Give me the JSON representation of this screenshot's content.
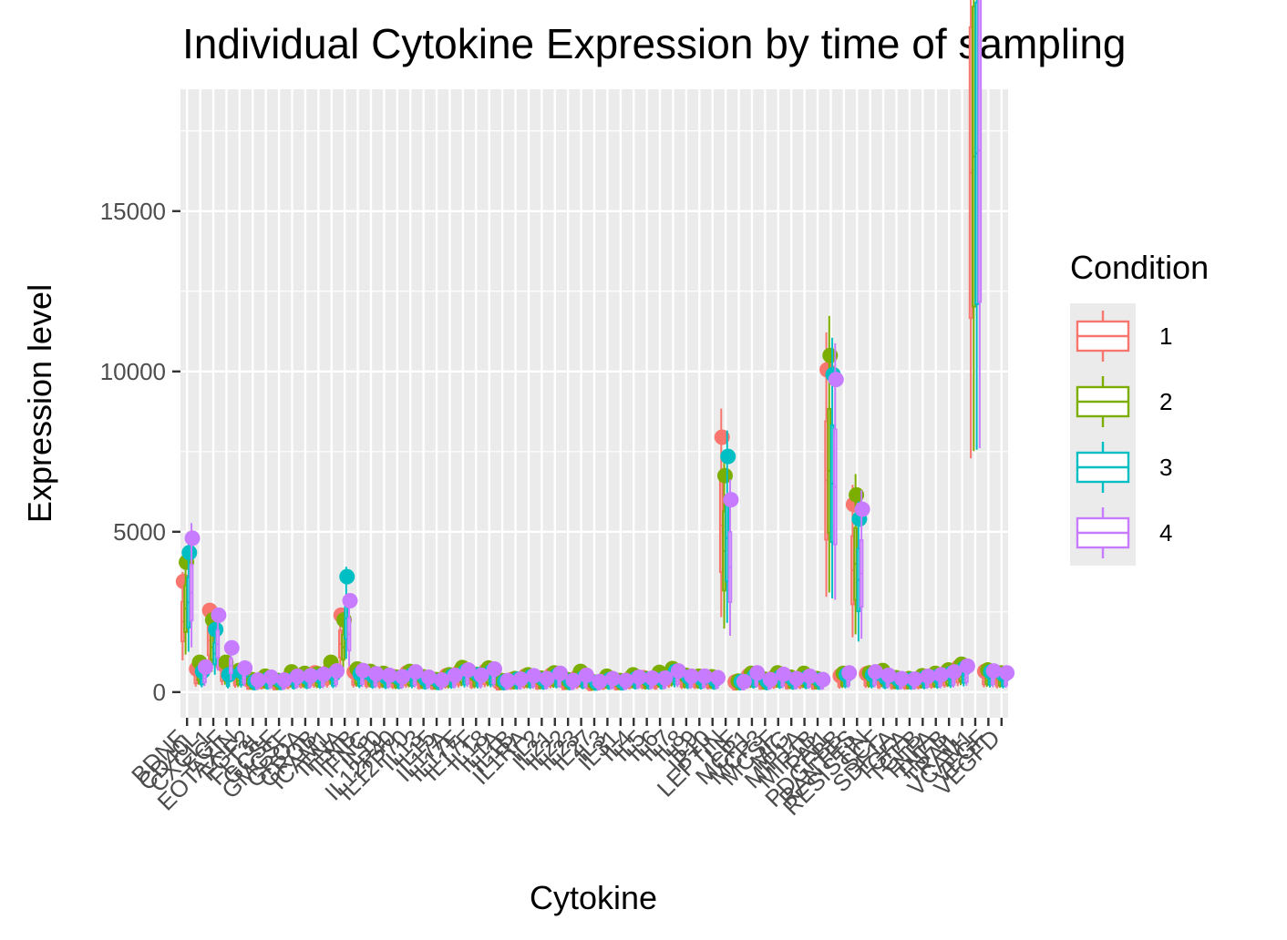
{
  "chart_data": {
    "type": "boxplot",
    "title": "Individual Cytokine Expression by time of sampling",
    "xlabel": "Cytokine",
    "ylabel": "Expression level",
    "ylim": [
      -800,
      18800
    ],
    "yticks": [
      0,
      5000,
      10000,
      15000
    ],
    "grid": true,
    "legend": {
      "title": "Condition",
      "placement": "right",
      "entries": [
        {
          "label": "1",
          "color": "#F8766D"
        },
        {
          "label": "2",
          "color": "#7CAE00"
        },
        {
          "label": "3",
          "color": "#00BFC4"
        },
        {
          "label": "4",
          "color": "#C77CFF"
        }
      ]
    },
    "categories": [
      "BDNF",
      "CD40L",
      "CXCL1",
      "EGF",
      "EOTAXIN",
      "FGF2",
      "FLT3L",
      "GCSF",
      "GMCSF",
      "GROA",
      "GROB",
      "ICAM1",
      "IFNA",
      "IFNB",
      "IFNG",
      "IL10",
      "IL12P40",
      "IL12P70",
      "IL13",
      "IL15",
      "IL17A",
      "IL17E",
      "IL17F",
      "IL18",
      "IL1A",
      "IL1B",
      "IL1RA",
      "IL2",
      "IL21",
      "IL22",
      "IL23",
      "IL27",
      "IL3",
      "IL31",
      "IL4",
      "IL5",
      "IL6",
      "IL7",
      "IL8",
      "IL9",
      "IP10",
      "LEPTIN",
      "LIF",
      "MCP1",
      "MCP3",
      "MCSF",
      "MIG",
      "MIP1A",
      "MIP1B",
      "PAI1",
      "PDGFBB",
      "RANTES",
      "RESISTIN",
      "SCF",
      "SDF1A",
      "TGFA",
      "TGFB",
      "TNFA",
      "TNFB",
      "TRAIL",
      "VCAM1",
      "VEGF",
      "VEGFD"
    ],
    "series": [
      {
        "name": "1",
        "values": [
          2200,
          380,
          1600,
          480,
          300,
          150,
          180,
          120,
          200,
          250,
          300,
          320,
          1500,
          320,
          260,
          240,
          220,
          300,
          180,
          150,
          240,
          320,
          220,
          340,
          110,
          160,
          230,
          150,
          260,
          130,
          220,
          90,
          150,
          120,
          190,
          200,
          160,
          290,
          220,
          210,
          180,
          5200,
          110,
          240,
          150,
          220,
          170,
          210,
          150,
          6600,
          240,
          3800,
          280,
          210,
          170,
          160,
          190,
          230,
          300,
          420,
          16200,
          330,
          260
        ]
      },
      {
        "name": "2",
        "values": [
          2600,
          520,
          1400,
          520,
          350,
          160,
          230,
          140,
          320,
          290,
          280,
          520,
          1400,
          380,
          330,
          290,
          210,
          330,
          220,
          160,
          260,
          410,
          270,
          400,
          140,
          180,
          260,
          190,
          300,
          160,
          330,
          110,
          230,
          140,
          260,
          180,
          310,
          390,
          250,
          230,
          220,
          4400,
          130,
          290,
          170,
          300,
          210,
          290,
          180,
          6900,
          290,
          4000,
          300,
          350,
          200,
          180,
          240,
          290,
          360,
          480,
          16700,
          360,
          300
        ]
      },
      {
        "name": "3",
        "values": [
          2800,
          330,
          1200,
          260,
          320,
          120,
          170,
          130,
          180,
          200,
          230,
          280,
          2300,
          280,
          230,
          210,
          190,
          270,
          170,
          130,
          230,
          330,
          260,
          330,
          120,
          170,
          220,
          160,
          250,
          130,
          200,
          100,
          160,
          110,
          180,
          170,
          170,
          330,
          210,
          180,
          160,
          4800,
          120,
          230,
          130,
          220,
          160,
          200,
          150,
          6500,
          260,
          3500,
          260,
          200,
          160,
          160,
          200,
          230,
          290,
          400,
          16800,
          320,
          260
        ]
      },
      {
        "name": "4",
        "values": [
          3100,
          420,
          1500,
          820,
          400,
          150,
          210,
          150,
          230,
          240,
          270,
          340,
          1800,
          350,
          280,
          250,
          220,
          320,
          210,
          150,
          250,
          360,
          250,
          380,
          140,
          170,
          240,
          180,
          290,
          140,
          250,
          120,
          180,
          140,
          210,
          190,
          190,
          340,
          230,
          230,
          200,
          3900,
          120,
          300,
          160,
          270,
          180,
          230,
          160,
          6400,
          300,
          3700,
          320,
          250,
          180,
          170,
          230,
          260,
          320,
          440,
          16900,
          340,
          300
        ]
      }
    ]
  }
}
